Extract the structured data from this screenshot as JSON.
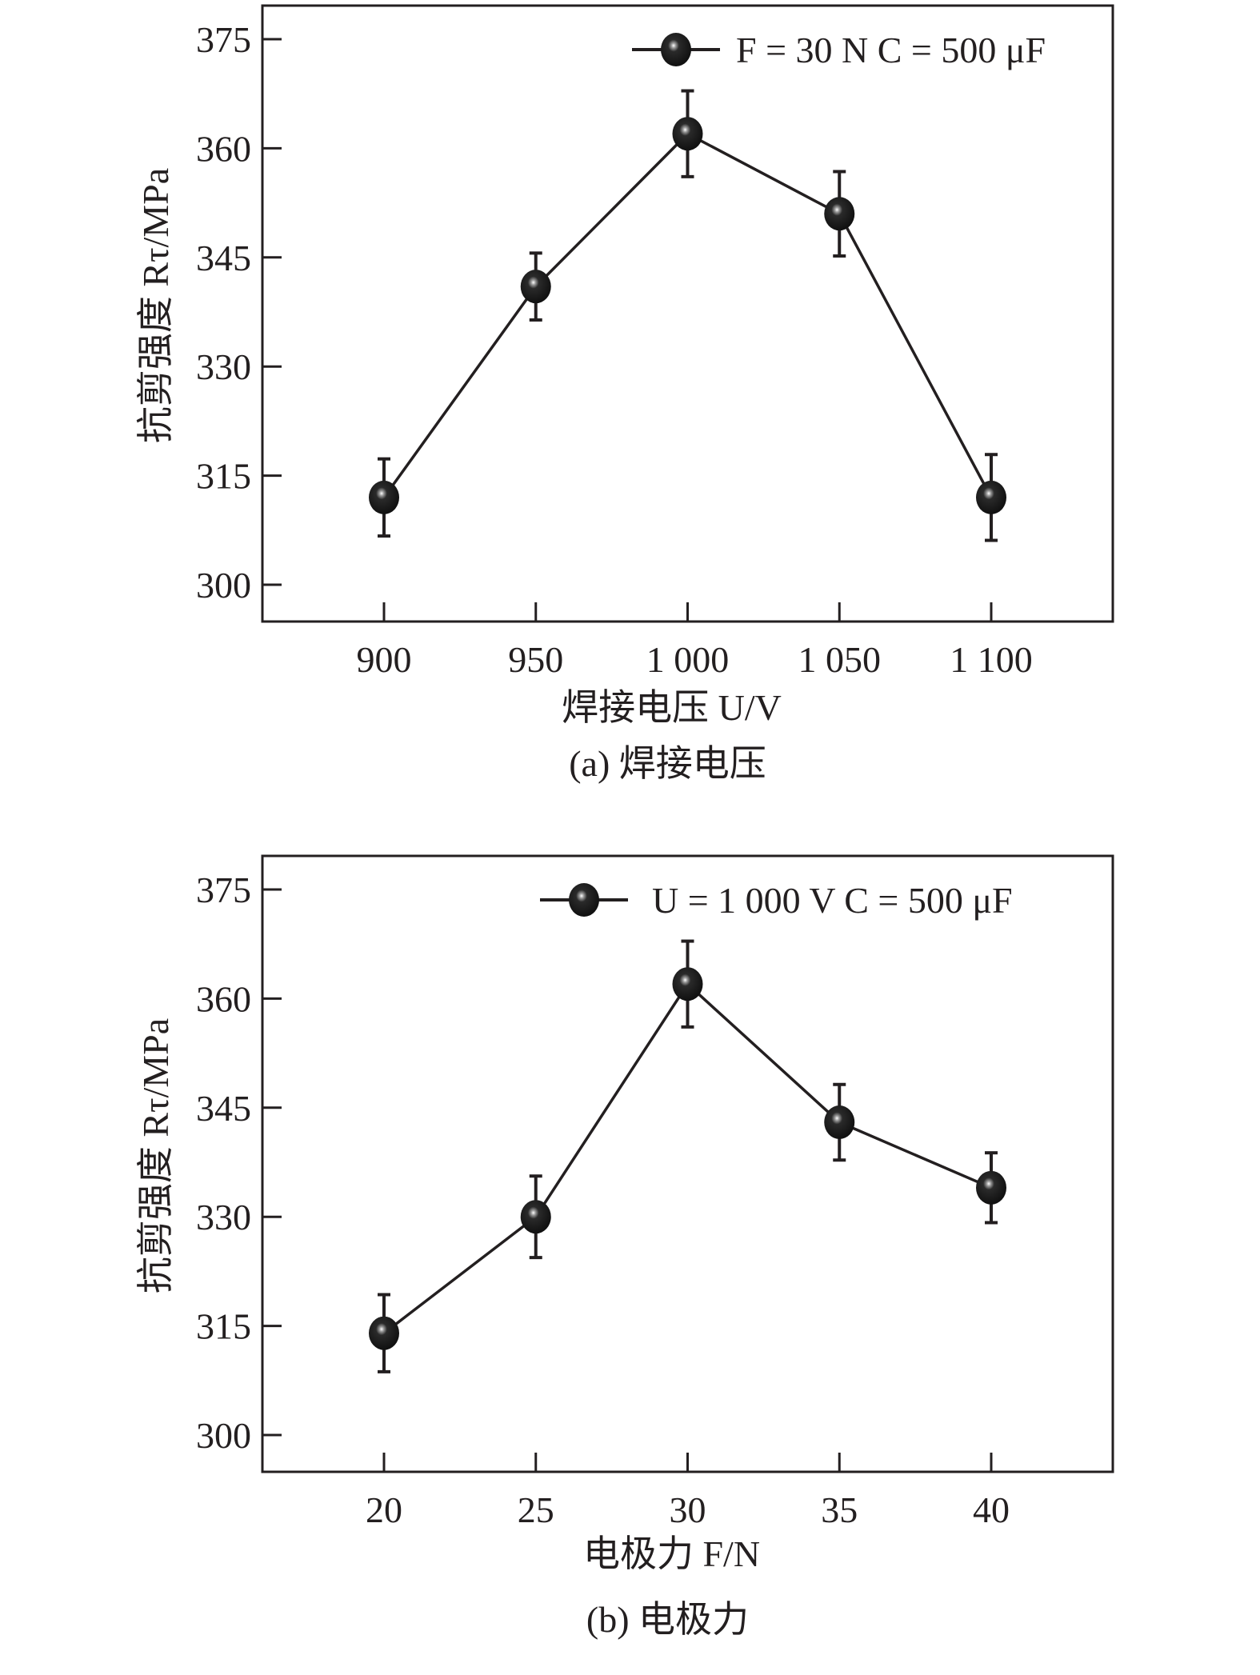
{
  "chart_data": [
    {
      "type": "line",
      "title": "",
      "caption": "(a) 焊接电压",
      "xlabel": "焊接电压 U/V",
      "ylabel": "抗剪强度 Rτ/MPa",
      "categories": [
        "900",
        "950",
        "1 000",
        "1 050",
        "1 100"
      ],
      "x": [
        900,
        950,
        1000,
        1050,
        1100
      ],
      "xlim": [
        860,
        1140
      ],
      "ylim": [
        295,
        380
      ],
      "yticks": [
        300,
        315,
        330,
        345,
        360,
        375
      ],
      "series": [
        {
          "name": "F = 30 N C = 500 μF",
          "values": [
            312,
            341,
            362,
            351,
            312
          ],
          "errors": [
            5.3,
            4.6,
            5.9,
            5.8,
            5.9
          ]
        }
      ],
      "legend": {
        "position": "top-right",
        "text": "F = 30 N C = 500 μF"
      },
      "grid": false
    },
    {
      "type": "line",
      "title": "",
      "caption": "(b) 电极力",
      "xlabel": "电极力 F/N",
      "ylabel": "抗剪强度 Rτ/MPa",
      "categories": [
        "20",
        "25",
        "30",
        "35",
        "40"
      ],
      "x": [
        20,
        25,
        30,
        35,
        40
      ],
      "xlim": [
        16,
        44
      ],
      "ylim": [
        295,
        380
      ],
      "yticks": [
        300,
        315,
        330,
        345,
        360,
        375
      ],
      "series": [
        {
          "name": "U = 1 000 V C = 500 μF",
          "values": [
            314,
            330,
            362,
            343,
            334
          ],
          "errors": [
            5.3,
            5.6,
            5.9,
            5.2,
            4.8
          ]
        }
      ],
      "legend": {
        "position": "top-right",
        "text": "U = 1 000 V   C = 500 μF"
      },
      "grid": false
    }
  ]
}
